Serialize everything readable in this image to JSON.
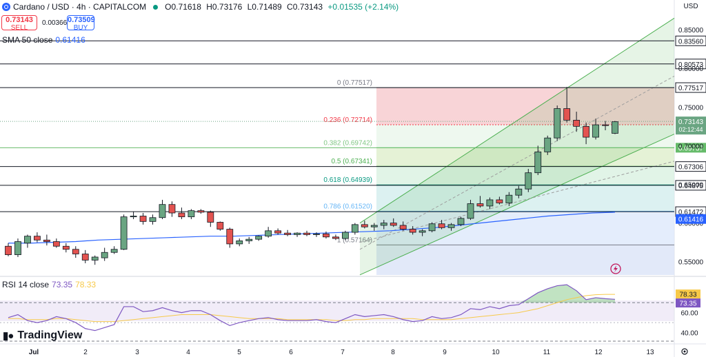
{
  "header": {
    "symbol": "Cardano / USD · 4h · CAPITALCOM",
    "open": "O0.71618",
    "high": "H0.73176",
    "low": "L0.71489",
    "close": "C0.73143",
    "change": "+0.01535 (+2.14%)"
  },
  "trade": {
    "sell_price": "0.73143",
    "sell_label": "SELL",
    "spread": "0.00366",
    "buy_price": "0.73509",
    "buy_label": "BUY"
  },
  "currency": "USD",
  "sma": {
    "label": "SMA 50 close",
    "value": "0.61416"
  },
  "rsi": {
    "label": "RSI 14 close",
    "value": "73.35",
    "ma_value": "78.33"
  },
  "logo_text": "TradingView",
  "colors": {
    "up": "#6aa582",
    "down": "#e35350",
    "sma": "#2962ff",
    "rsi": "#7e57c2",
    "rsi_ma": "#f7c948",
    "channel": "#4caf50"
  },
  "chart_data": {
    "type": "candlestick",
    "title": "Cardano / USD · 4h · CAPITALCOM",
    "x_labels": [
      "Jul",
      "2",
      "3",
      "4",
      "5",
      "6",
      "7",
      "8",
      "9",
      "10",
      "11",
      "12",
      "13"
    ],
    "y_ticks": [
      "0.85000",
      "0.80000",
      "0.75000",
      "0.70000",
      "0.65000",
      "0.60000",
      "0.55000"
    ],
    "ylim": [
      0.5328,
      0.8706
    ],
    "horizontal_levels": [
      {
        "label": "0.83560",
        "value": 0.8356
      },
      {
        "label": "0.80573",
        "value": 0.80573
      },
      {
        "label": "0.77517",
        "value": 0.77517
      },
      {
        "label": "0.69737",
        "value": 0.69737
      },
      {
        "label": "0.67306",
        "value": 0.67306
      },
      {
        "label": "0.64875",
        "value": 0.64875
      },
      {
        "label": "0.61472",
        "value": 0.61472
      }
    ],
    "price_badges": [
      {
        "label": "0.73143",
        "sub": "02:12:44",
        "value": 0.73143
      },
      {
        "label": "0.61416",
        "value": 0.61416
      }
    ],
    "fibonacci": [
      {
        "label": "0 (0.77517)",
        "value": 0.77517
      },
      {
        "label": "0.236 (0.72714)",
        "value": 0.72714
      },
      {
        "label": "0.382 (0.69742)",
        "value": 0.69742
      },
      {
        "label": "0.5 (0.67341)",
        "value": 0.67341
      },
      {
        "label": "0.618 (0.64939)",
        "value": 0.64939
      },
      {
        "label": "0.786 (0.61520)",
        "value": 0.6152
      },
      {
        "label": "1 (0.57164)",
        "value": 0.57164
      }
    ],
    "candles": [
      [
        0.57,
        0.574,
        0.557,
        0.559
      ],
      [
        0.559,
        0.58,
        0.556,
        0.576
      ],
      [
        0.574,
        0.585,
        0.568,
        0.583
      ],
      [
        0.583,
        0.588,
        0.575,
        0.578
      ],
      [
        0.578,
        0.585,
        0.571,
        0.576
      ],
      [
        0.576,
        0.58,
        0.568,
        0.57
      ],
      [
        0.57,
        0.574,
        0.562,
        0.566
      ],
      [
        0.566,
        0.57,
        0.555,
        0.56
      ],
      [
        0.56,
        0.565,
        0.548,
        0.552
      ],
      [
        0.552,
        0.558,
        0.546,
        0.556
      ],
      [
        0.555,
        0.568,
        0.551,
        0.562
      ],
      [
        0.562,
        0.57,
        0.56,
        0.566
      ],
      [
        0.566,
        0.611,
        0.565,
        0.608
      ],
      [
        0.608,
        0.615,
        0.605,
        0.609
      ],
      [
        0.609,
        0.613,
        0.598,
        0.602
      ],
      [
        0.602,
        0.611,
        0.598,
        0.607
      ],
      [
        0.607,
        0.63,
        0.605,
        0.624
      ],
      [
        0.624,
        0.628,
        0.608,
        0.613
      ],
      [
        0.613,
        0.62,
        0.605,
        0.608
      ],
      [
        0.608,
        0.618,
        0.605,
        0.616
      ],
      [
        0.616,
        0.618,
        0.612,
        0.614
      ],
      [
        0.614,
        0.616,
        0.595,
        0.601
      ],
      [
        0.601,
        0.602,
        0.59,
        0.592
      ],
      [
        0.592,
        0.594,
        0.568,
        0.573
      ],
      [
        0.573,
        0.58,
        0.57,
        0.577
      ],
      [
        0.577,
        0.582,
        0.573,
        0.579
      ],
      [
        0.579,
        0.584,
        0.577,
        0.583
      ],
      [
        0.583,
        0.595,
        0.581,
        0.59
      ],
      [
        0.59,
        0.593,
        0.585,
        0.587
      ],
      [
        0.587,
        0.591,
        0.583,
        0.585
      ],
      [
        0.585,
        0.588,
        0.582,
        0.587
      ],
      [
        0.587,
        0.59,
        0.583,
        0.585
      ],
      [
        0.585,
        0.588,
        0.582,
        0.586
      ],
      [
        0.586,
        0.589,
        0.58,
        0.582
      ],
      [
        0.582,
        0.585,
        0.578,
        0.58
      ],
      [
        0.58,
        0.59,
        0.578,
        0.588
      ],
      [
        0.588,
        0.6,
        0.585,
        0.598
      ],
      [
        0.598,
        0.603,
        0.593,
        0.595
      ],
      [
        0.595,
        0.6,
        0.59,
        0.597
      ],
      [
        0.597,
        0.604,
        0.592,
        0.6
      ],
      [
        0.6,
        0.606,
        0.595,
        0.597
      ],
      [
        0.597,
        0.602,
        0.59,
        0.592
      ],
      [
        0.592,
        0.596,
        0.585,
        0.588
      ],
      [
        0.588,
        0.592,
        0.583,
        0.59
      ],
      [
        0.59,
        0.601,
        0.588,
        0.599
      ],
      [
        0.599,
        0.604,
        0.592,
        0.594
      ],
      [
        0.594,
        0.6,
        0.59,
        0.598
      ],
      [
        0.598,
        0.608,
        0.596,
        0.606
      ],
      [
        0.606,
        0.63,
        0.604,
        0.625
      ],
      [
        0.625,
        0.635,
        0.62,
        0.622
      ],
      [
        0.622,
        0.633,
        0.618,
        0.63
      ],
      [
        0.63,
        0.634,
        0.624,
        0.626
      ],
      [
        0.626,
        0.64,
        0.622,
        0.636
      ],
      [
        0.636,
        0.648,
        0.632,
        0.644
      ],
      [
        0.644,
        0.67,
        0.64,
        0.665
      ],
      [
        0.665,
        0.7,
        0.662,
        0.692
      ],
      [
        0.692,
        0.713,
        0.688,
        0.71
      ],
      [
        0.71,
        0.752,
        0.706,
        0.748
      ],
      [
        0.748,
        0.776,
        0.73,
        0.733
      ],
      [
        0.733,
        0.744,
        0.718,
        0.725
      ],
      [
        0.725,
        0.73,
        0.702,
        0.711
      ],
      [
        0.711,
        0.735,
        0.708,
        0.727
      ],
      [
        0.727,
        0.732,
        0.72,
        0.726
      ],
      [
        0.716,
        0.732,
        0.715,
        0.731
      ]
    ],
    "sma_50": [
      0.574,
      0.574,
      0.575,
      0.576,
      0.578,
      0.579,
      0.58,
      0.581,
      0.582,
      0.583,
      0.583,
      0.584,
      0.585,
      0.586,
      0.587,
      0.588,
      0.589,
      0.59,
      0.592,
      0.594,
      0.597,
      0.6,
      0.603,
      0.606,
      0.609,
      0.611,
      0.613,
      0.614
    ],
    "rsi_panel": {
      "y_ticks": [
        "80.00",
        "60.00",
        "40.00"
      ],
      "rsi_values": [
        55,
        58,
        52,
        50,
        52,
        56,
        54,
        50,
        44,
        42,
        45,
        48,
        66,
        66,
        61,
        62,
        65,
        62,
        60,
        62,
        62,
        58,
        52,
        47,
        50,
        52,
        54,
        55,
        53,
        52,
        52,
        52,
        53,
        51,
        50,
        54,
        58,
        56,
        57,
        58,
        56,
        53,
        51,
        52,
        56,
        54,
        55,
        58,
        64,
        63,
        66,
        64,
        67,
        68,
        74,
        80,
        84,
        87,
        88,
        82,
        73,
        75,
        74,
        73.35
      ],
      "rsi_ma_values": [
        54,
        54,
        53,
        53,
        53,
        54,
        54,
        53,
        52,
        51,
        51,
        51,
        52,
        53,
        54,
        55,
        56,
        57,
        58,
        58,
        58,
        58,
        57,
        56,
        55,
        54,
        54,
        54,
        54,
        53,
        53,
        53,
        53,
        53,
        52,
        52,
        53,
        53,
        54,
        54,
        54,
        54,
        54,
        53,
        53,
        53,
        53,
        54,
        55,
        56,
        57,
        58,
        59,
        60,
        62,
        64,
        67,
        70,
        73,
        75,
        77,
        78,
        78.3,
        78.33
      ]
    }
  }
}
